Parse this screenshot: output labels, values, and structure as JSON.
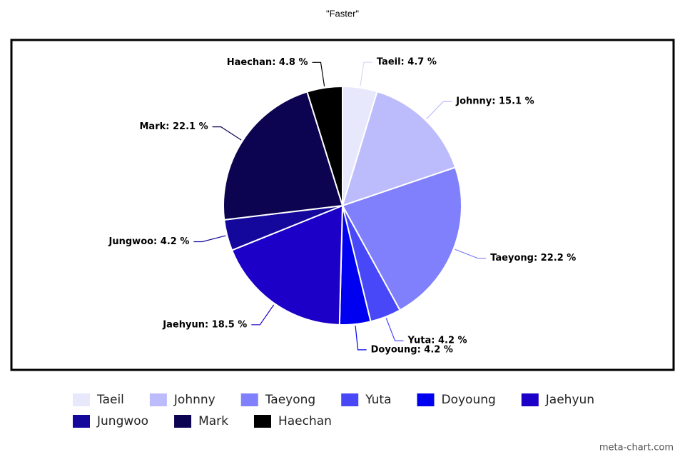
{
  "chart_data": {
    "type": "pie",
    "title": "\"Faster\"",
    "categories": [
      "Taeil",
      "Johnny",
      "Taeyong",
      "Yuta",
      "Doyoung",
      "Jaehyun",
      "Jungwoo",
      "Mark",
      "Haechan"
    ],
    "values": [
      4.7,
      15.1,
      22.2,
      4.2,
      4.2,
      18.5,
      4.2,
      22.1,
      4.8
    ],
    "value_labels": [
      "Taeil: 4.7 %",
      "Johnny: 15.1 %",
      "Taeyong: 22.2 %",
      "Yuta: 4.2 %",
      "Doyoung: 4.2 %",
      "Jaehyun: 18.5 %",
      "Jungwoo: 4.2 %",
      "Mark: 22.1 %",
      "Haechan: 4.8 %"
    ],
    "colors": [
      "#e8e8fc",
      "#bcbcfc",
      "#8080fc",
      "#4848f8",
      "#0000f0",
      "#1c00c8",
      "#14089c",
      "#0c0450",
      "#000000"
    ],
    "legend": "bottom"
  },
  "watermark": "meta-chart.com"
}
